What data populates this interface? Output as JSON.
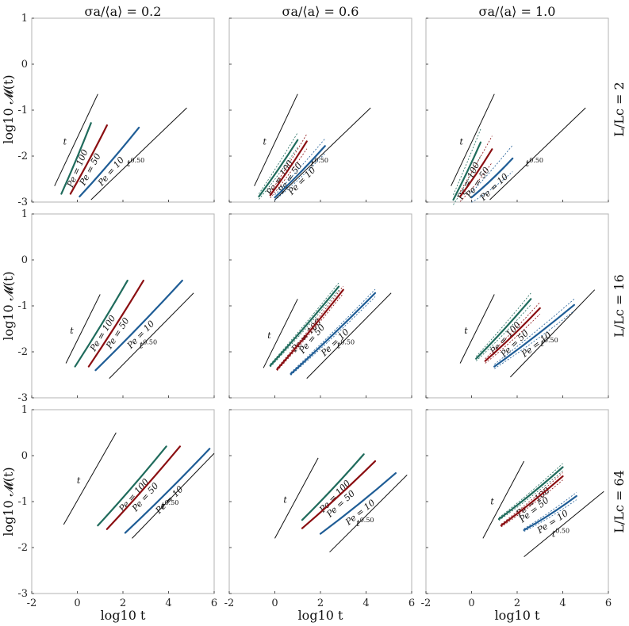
{
  "figure": {
    "column_titles": [
      "σa/⟨a⟩ = 0.2",
      "σa/⟨a⟩ = 0.6",
      "σa/⟨a⟩ = 1.0"
    ],
    "row_titles": [
      "L/Lc = 2",
      "L/Lc = 16",
      "L/Lc = 64"
    ],
    "y_axis_label": "log10 𝓜(t)",
    "x_axis_label": "log10 t"
  },
  "colors": {
    "Pe = 100": "#1f6b5c",
    "Pe = 50": "#8b0f12",
    "Pe = 10": "#1f5d96"
  },
  "chart_data": {
    "type": "line",
    "xlim": [
      -2,
      6
    ],
    "ylim": [
      -3,
      1
    ],
    "xticks": [
      -2,
      0,
      2,
      4,
      6
    ],
    "yticks": [
      -3,
      -2,
      -1,
      0,
      1
    ],
    "panels": [
      {
        "row": 0,
        "col": 0,
        "ref_lines": [
          {
            "label": "t",
            "x": [
              -1.0,
              0.9
            ],
            "y": [
              -2.65,
              -0.65
            ]
          },
          {
            "label": "t^0.50",
            "x": [
              0.6,
              4.8
            ],
            "y": [
              -2.95,
              -0.95
            ]
          }
        ],
        "series": [
          {
            "name": "Pe = 100",
            "x": [
              -0.7,
              0.6
            ],
            "y": [
              -2.82,
              -1.28
            ],
            "band": 0.02
          },
          {
            "name": "Pe = 50",
            "x": [
              -0.3,
              1.3
            ],
            "y": [
              -2.82,
              -1.33
            ],
            "band": 0.02
          },
          {
            "name": "Pe = 10",
            "x": [
              0.1,
              2.7
            ],
            "y": [
              -2.88,
              -1.38
            ],
            "band": 0.02
          }
        ]
      },
      {
        "row": 0,
        "col": 1,
        "ref_lines": [
          {
            "label": "t",
            "x": [
              -0.9,
              1.0
            ],
            "y": [
              -2.65,
              -0.65
            ]
          },
          {
            "label": "t^0.50",
            "x": [
              0.0,
              4.2
            ],
            "y": [
              -2.95,
              -0.95
            ]
          }
        ],
        "series": [
          {
            "name": "Pe = 100",
            "x": [
              -0.7,
              1.0
            ],
            "y": [
              -2.88,
              -1.65
            ],
            "band": 0.1
          },
          {
            "name": "Pe = 50",
            "x": [
              -0.2,
              1.4
            ],
            "y": [
              -2.85,
              -1.68
            ],
            "band": 0.1
          },
          {
            "name": "Pe = 10",
            "x": [
              0.0,
              2.2
            ],
            "y": [
              -2.9,
              -1.78
            ],
            "band": 0.1
          }
        ]
      },
      {
        "row": 0,
        "col": 2,
        "ref_lines": [
          {
            "label": "t",
            "x": [
              -0.9,
              1.0
            ],
            "y": [
              -2.65,
              -0.65
            ]
          },
          {
            "label": "t^0.50",
            "x": [
              0.8,
              5.0
            ],
            "y": [
              -2.95,
              -0.95
            ]
          }
        ],
        "series": [
          {
            "name": "Pe = 100",
            "x": [
              -0.8,
              0.4
            ],
            "y": [
              -2.95,
              -1.7
            ],
            "band": 0.18
          },
          {
            "name": "Pe = 50",
            "x": [
              -0.5,
              0.9
            ],
            "y": [
              -2.88,
              -1.85
            ],
            "band": 0.18
          },
          {
            "name": "Pe = 10",
            "x": [
              0.0,
              1.8
            ],
            "y": [
              -2.9,
              -2.05
            ],
            "band": 0.18
          }
        ]
      },
      {
        "row": 1,
        "col": 0,
        "ref_lines": [
          {
            "label": "t",
            "x": [
              -0.5,
              1.0
            ],
            "y": [
              -2.25,
              -0.75
            ]
          },
          {
            "label": "t^0.50",
            "x": [
              1.4,
              5.1
            ],
            "y": [
              -2.58,
              -0.72
            ]
          }
        ],
        "series": [
          {
            "name": "Pe = 100",
            "x": [
              -0.1,
              2.2
            ],
            "y": [
              -2.32,
              -0.45
            ],
            "band": 0.02
          },
          {
            "name": "Pe = 50",
            "x": [
              0.5,
              2.9
            ],
            "y": [
              -2.32,
              -0.45
            ],
            "band": 0.02
          },
          {
            "name": "Pe = 10",
            "x": [
              0.8,
              4.6
            ],
            "y": [
              -2.4,
              -0.45
            ],
            "band": 0.02
          }
        ]
      },
      {
        "row": 1,
        "col": 1,
        "ref_lines": [
          {
            "label": "t",
            "x": [
              -0.5,
              1.0
            ],
            "y": [
              -2.35,
              -0.85
            ]
          },
          {
            "label": "t^0.50",
            "x": [
              1.4,
              5.1
            ],
            "y": [
              -2.58,
              -0.72
            ]
          }
        ],
        "series": [
          {
            "name": "Pe = 100",
            "x": [
              -0.2,
              2.8
            ],
            "y": [
              -2.3,
              -0.58
            ],
            "band": 0.05
          },
          {
            "name": "Pe = 50",
            "x": [
              0.1,
              3.0
            ],
            "y": [
              -2.38,
              -0.65
            ],
            "band": 0.05
          },
          {
            "name": "Pe = 10",
            "x": [
              0.7,
              4.4
            ],
            "y": [
              -2.48,
              -0.72
            ],
            "band": 0.05
          }
        ]
      },
      {
        "row": 1,
        "col": 2,
        "ref_lines": [
          {
            "label": "t",
            "x": [
              -0.5,
              1.0
            ],
            "y": [
              -2.25,
              -0.75
            ]
          },
          {
            "label": "t^0.50",
            "x": [
              1.7,
              5.4
            ],
            "y": [
              -2.55,
              -0.65
            ]
          }
        ],
        "series": [
          {
            "name": "Pe = 100",
            "x": [
              0.2,
              2.6
            ],
            "y": [
              -2.15,
              -0.85
            ],
            "band": 0.08
          },
          {
            "name": "Pe = 50",
            "x": [
              0.6,
              3.0
            ],
            "y": [
              -2.2,
              -1.05
            ],
            "band": 0.08
          },
          {
            "name": "Pe = 10",
            "x": [
              1.0,
              4.5
            ],
            "y": [
              -2.32,
              -0.98
            ],
            "band": 0.08
          }
        ]
      },
      {
        "row": 2,
        "col": 0,
        "ref_lines": [
          {
            "label": "t",
            "x": [
              -0.6,
              1.7
            ],
            "y": [
              -1.5,
              0.5
            ]
          },
          {
            "label": "t^0.50",
            "x": [
              2.4,
              6.0
            ],
            "y": [
              -1.8,
              0.05
            ]
          }
        ],
        "series": [
          {
            "name": "Pe = 100",
            "x": [
              0.9,
              3.9
            ],
            "y": [
              -1.52,
              0.2
            ],
            "band": 0.02
          },
          {
            "name": "Pe = 50",
            "x": [
              1.3,
              4.5
            ],
            "y": [
              -1.6,
              0.2
            ],
            "band": 0.02
          },
          {
            "name": "Pe = 10",
            "x": [
              2.1,
              5.8
            ],
            "y": [
              -1.68,
              0.15
            ],
            "band": 0.02
          }
        ]
      },
      {
        "row": 2,
        "col": 1,
        "ref_lines": [
          {
            "label": "t",
            "x": [
              0.0,
              1.9
            ],
            "y": [
              -1.8,
              -0.05
            ]
          },
          {
            "label": "t^0.50",
            "x": [
              2.4,
              5.8
            ],
            "y": [
              -2.1,
              -0.42
            ]
          }
        ],
        "series": [
          {
            "name": "Pe = 100",
            "x": [
              1.2,
              3.9
            ],
            "y": [
              -1.4,
              0.03
            ],
            "band": 0.02
          },
          {
            "name": "Pe = 50",
            "x": [
              1.2,
              4.4
            ],
            "y": [
              -1.58,
              -0.12
            ],
            "band": 0.02
          },
          {
            "name": "Pe = 10",
            "x": [
              2.0,
              5.3
            ],
            "y": [
              -1.7,
              -0.38
            ],
            "band": 0.02
          }
        ]
      },
      {
        "row": 2,
        "col": 2,
        "ref_lines": [
          {
            "label": "t",
            "x": [
              0.5,
              2.3
            ],
            "y": [
              -1.8,
              -0.12
            ]
          },
          {
            "label": "t^0.50",
            "x": [
              2.3,
              5.8
            ],
            "y": [
              -2.2,
              -0.78
            ]
          }
        ],
        "series": [
          {
            "name": "Pe = 100",
            "x": [
              1.2,
              4.0
            ],
            "y": [
              -1.38,
              -0.25
            ],
            "band": 0.05
          },
          {
            "name": "Pe = 50",
            "x": [
              1.3,
              4.0
            ],
            "y": [
              -1.52,
              -0.45
            ],
            "band": 0.05
          },
          {
            "name": "Pe = 10",
            "x": [
              2.3,
              4.6
            ],
            "y": [
              -1.62,
              -0.88
            ],
            "band": 0.05
          }
        ]
      }
    ]
  }
}
